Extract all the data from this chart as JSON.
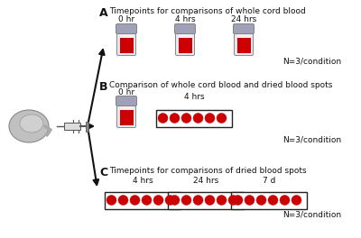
{
  "background_color": "#ffffff",
  "section_A_label": "A",
  "section_B_label": "B",
  "section_C_label": "C",
  "section_A_title": "Timepoints for comparisons of whole cord blood",
  "section_B_title": "Comparison of whole cord blood and dried blood spots",
  "section_C_title": "Timepoints for comparisons of dried blood spots",
  "section_A_timepoints": [
    "0 hr",
    "4 hrs",
    "24 hrs"
  ],
  "section_B_tube_label": "0 hr",
  "section_B_spot_label": "4 hrs",
  "section_C_timepoints": [
    "4 hrs",
    "24 hrs",
    "7 d"
  ],
  "n_label": "N=3/condition",
  "tube_cap_color": "#a0a0b8",
  "tube_body_color": "#e8e8f0",
  "tube_white_color": "#f5f5f5",
  "blood_color": "#cc0000",
  "box_color": "#222222",
  "arrow_color": "#111111",
  "text_color": "#111111",
  "umbilical_color": "#bbbbbb",
  "umbilical_edge": "#888888",
  "syringe_body": "#cccccc",
  "syringe_edge": "#555555"
}
